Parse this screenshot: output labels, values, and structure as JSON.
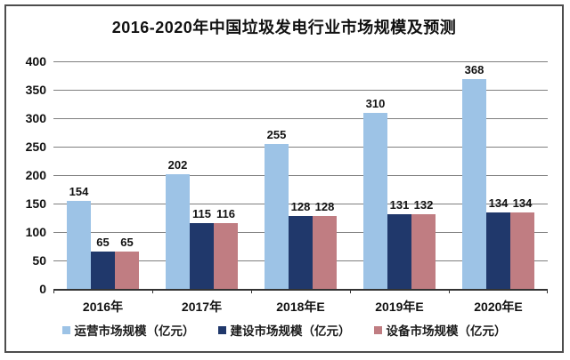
{
  "window": {
    "background": "#ffffff",
    "frame_border_color": "#4d4d4d"
  },
  "chart_data": {
    "type": "bar",
    "title": "2016-2020年中国垃圾发电行业市场规模及预测",
    "categories": [
      "2016年",
      "2017年",
      "2018年E",
      "2019年E",
      "2020年E"
    ],
    "series": [
      {
        "name": "运营市场规模（亿元）",
        "color": "#9DC3E6",
        "values": [
          154,
          202,
          255,
          310,
          368
        ]
      },
      {
        "name": "建设市场规模（亿元）",
        "color": "#20386B",
        "values": [
          65,
          115,
          128,
          131,
          134
        ]
      },
      {
        "name": "设备市场规模（亿元）",
        "color": "#C07D82",
        "values": [
          65,
          116,
          128,
          132,
          134
        ]
      }
    ],
    "ylim": [
      0,
      400
    ],
    "ytick_step": 50,
    "yticks": [
      0,
      50,
      100,
      150,
      200,
      250,
      300,
      350,
      400
    ],
    "grid": true,
    "legend_position": "bottom",
    "value_labels": true,
    "colors": {
      "gridline": "#7F7F7F",
      "axis": "#333333",
      "text": "#111111"
    }
  }
}
